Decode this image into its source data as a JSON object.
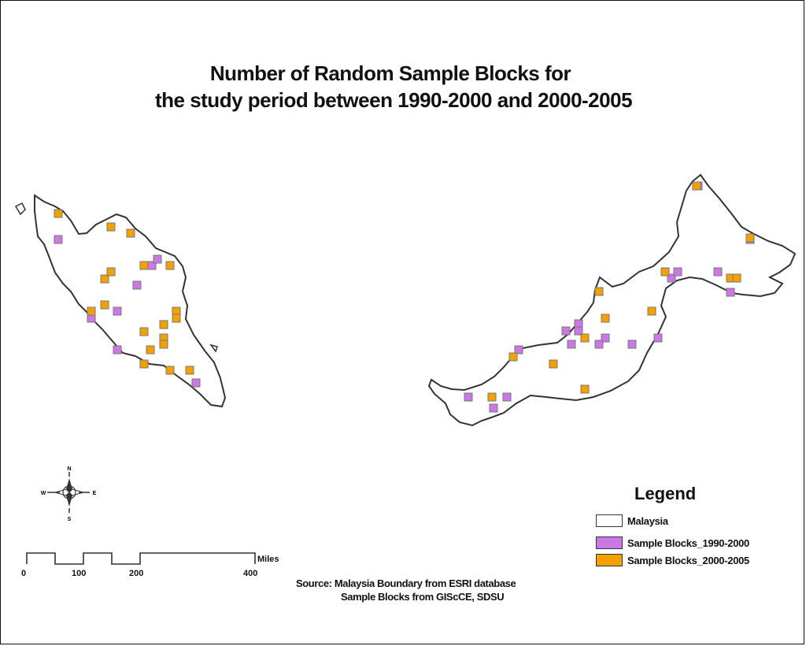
{
  "title": {
    "line1": "Number of Random Sample Blocks for",
    "line2": "the study period between 1990-2000 and 2000-2005"
  },
  "colors": {
    "boundary": "#333333",
    "blocks_1990_2000": "#cc77e6",
    "blocks_2000_2005": "#f2a100"
  },
  "legend": {
    "title": "Legend",
    "items": [
      {
        "label": "Malaysia",
        "color": "#ffffff"
      },
      {
        "label": "Sample Blocks_1990-2000",
        "color": "#cc77e6"
      },
      {
        "label": "Sample Blocks_2000-2005",
        "color": "#f2a100"
      }
    ]
  },
  "scale_bar": {
    "ticks": [
      "0",
      "100",
      "200",
      "400"
    ],
    "unit": "Miles"
  },
  "north_arrow": {
    "icon": "compass-rose-icon",
    "labels": [
      "N",
      "E",
      "S",
      "W"
    ]
  },
  "source": {
    "line1": "Source: Malaysia Boundary from ESRI database",
    "line2": "Sample Blocks from GIScCE, SDSU"
  }
}
